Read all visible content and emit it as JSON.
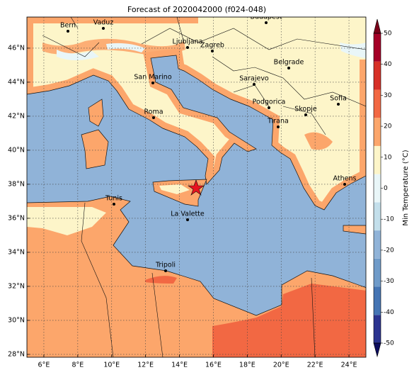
{
  "title": "Forecast of 2020042000 (f024-048)",
  "map": {
    "xlim": [
      5,
      25
    ],
    "ylim": [
      27.83,
      47.83
    ],
    "xticks": [
      {
        "value": 6,
        "label": "6°E"
      },
      {
        "value": 8,
        "label": "8°E"
      },
      {
        "value": 10,
        "label": "10°E"
      },
      {
        "value": 12,
        "label": "12°E"
      },
      {
        "value": 14,
        "label": "14°E"
      },
      {
        "value": 16,
        "label": "16°E"
      },
      {
        "value": 18,
        "label": "18°E"
      },
      {
        "value": 20,
        "label": "20°E"
      },
      {
        "value": 22,
        "label": "22°E"
      },
      {
        "value": 24,
        "label": "24°E"
      }
    ],
    "yticks": [
      {
        "value": 28,
        "label": "28°N"
      },
      {
        "value": 30,
        "label": "30°N"
      },
      {
        "value": 32,
        "label": "32°N"
      },
      {
        "value": 34,
        "label": "34°N"
      },
      {
        "value": 36,
        "label": "36°N"
      },
      {
        "value": 38,
        "label": "38°N"
      },
      {
        "value": 40,
        "label": "40°N"
      },
      {
        "value": 42,
        "label": "42°N"
      },
      {
        "value": 44,
        "label": "44°N"
      },
      {
        "value": 46,
        "label": "46°N"
      }
    ],
    "cities": [
      "Bern",
      "Vaduz",
      "Budapest",
      "Ljubljana",
      "Zagreb",
      "Belgrade",
      "San Marino",
      "Sarajevo",
      "Sofia",
      "Podgorica",
      "Skopje",
      "Roma",
      "Tirana",
      "Athens",
      "Tunis",
      "La Valette",
      "Tripoli"
    ]
  },
  "colorbar": {
    "label": "Min Temperature (°C)",
    "lim": [
      -50,
      50
    ],
    "ticks": [
      -50,
      -40,
      -30,
      -20,
      -10,
      0,
      10,
      20,
      30,
      40,
      50
    ],
    "colors": [
      "#2b3490",
      "#4575b4",
      "#6f9bc9",
      "#90b3d8",
      "#c3dfeb",
      "#e9f6f8",
      "#fdf5c9",
      "#fca66b",
      "#f26843",
      "#d73027",
      "#a50026"
    ],
    "extend_colors": [
      "#0d0d5e",
      "#7a0018"
    ]
  }
}
